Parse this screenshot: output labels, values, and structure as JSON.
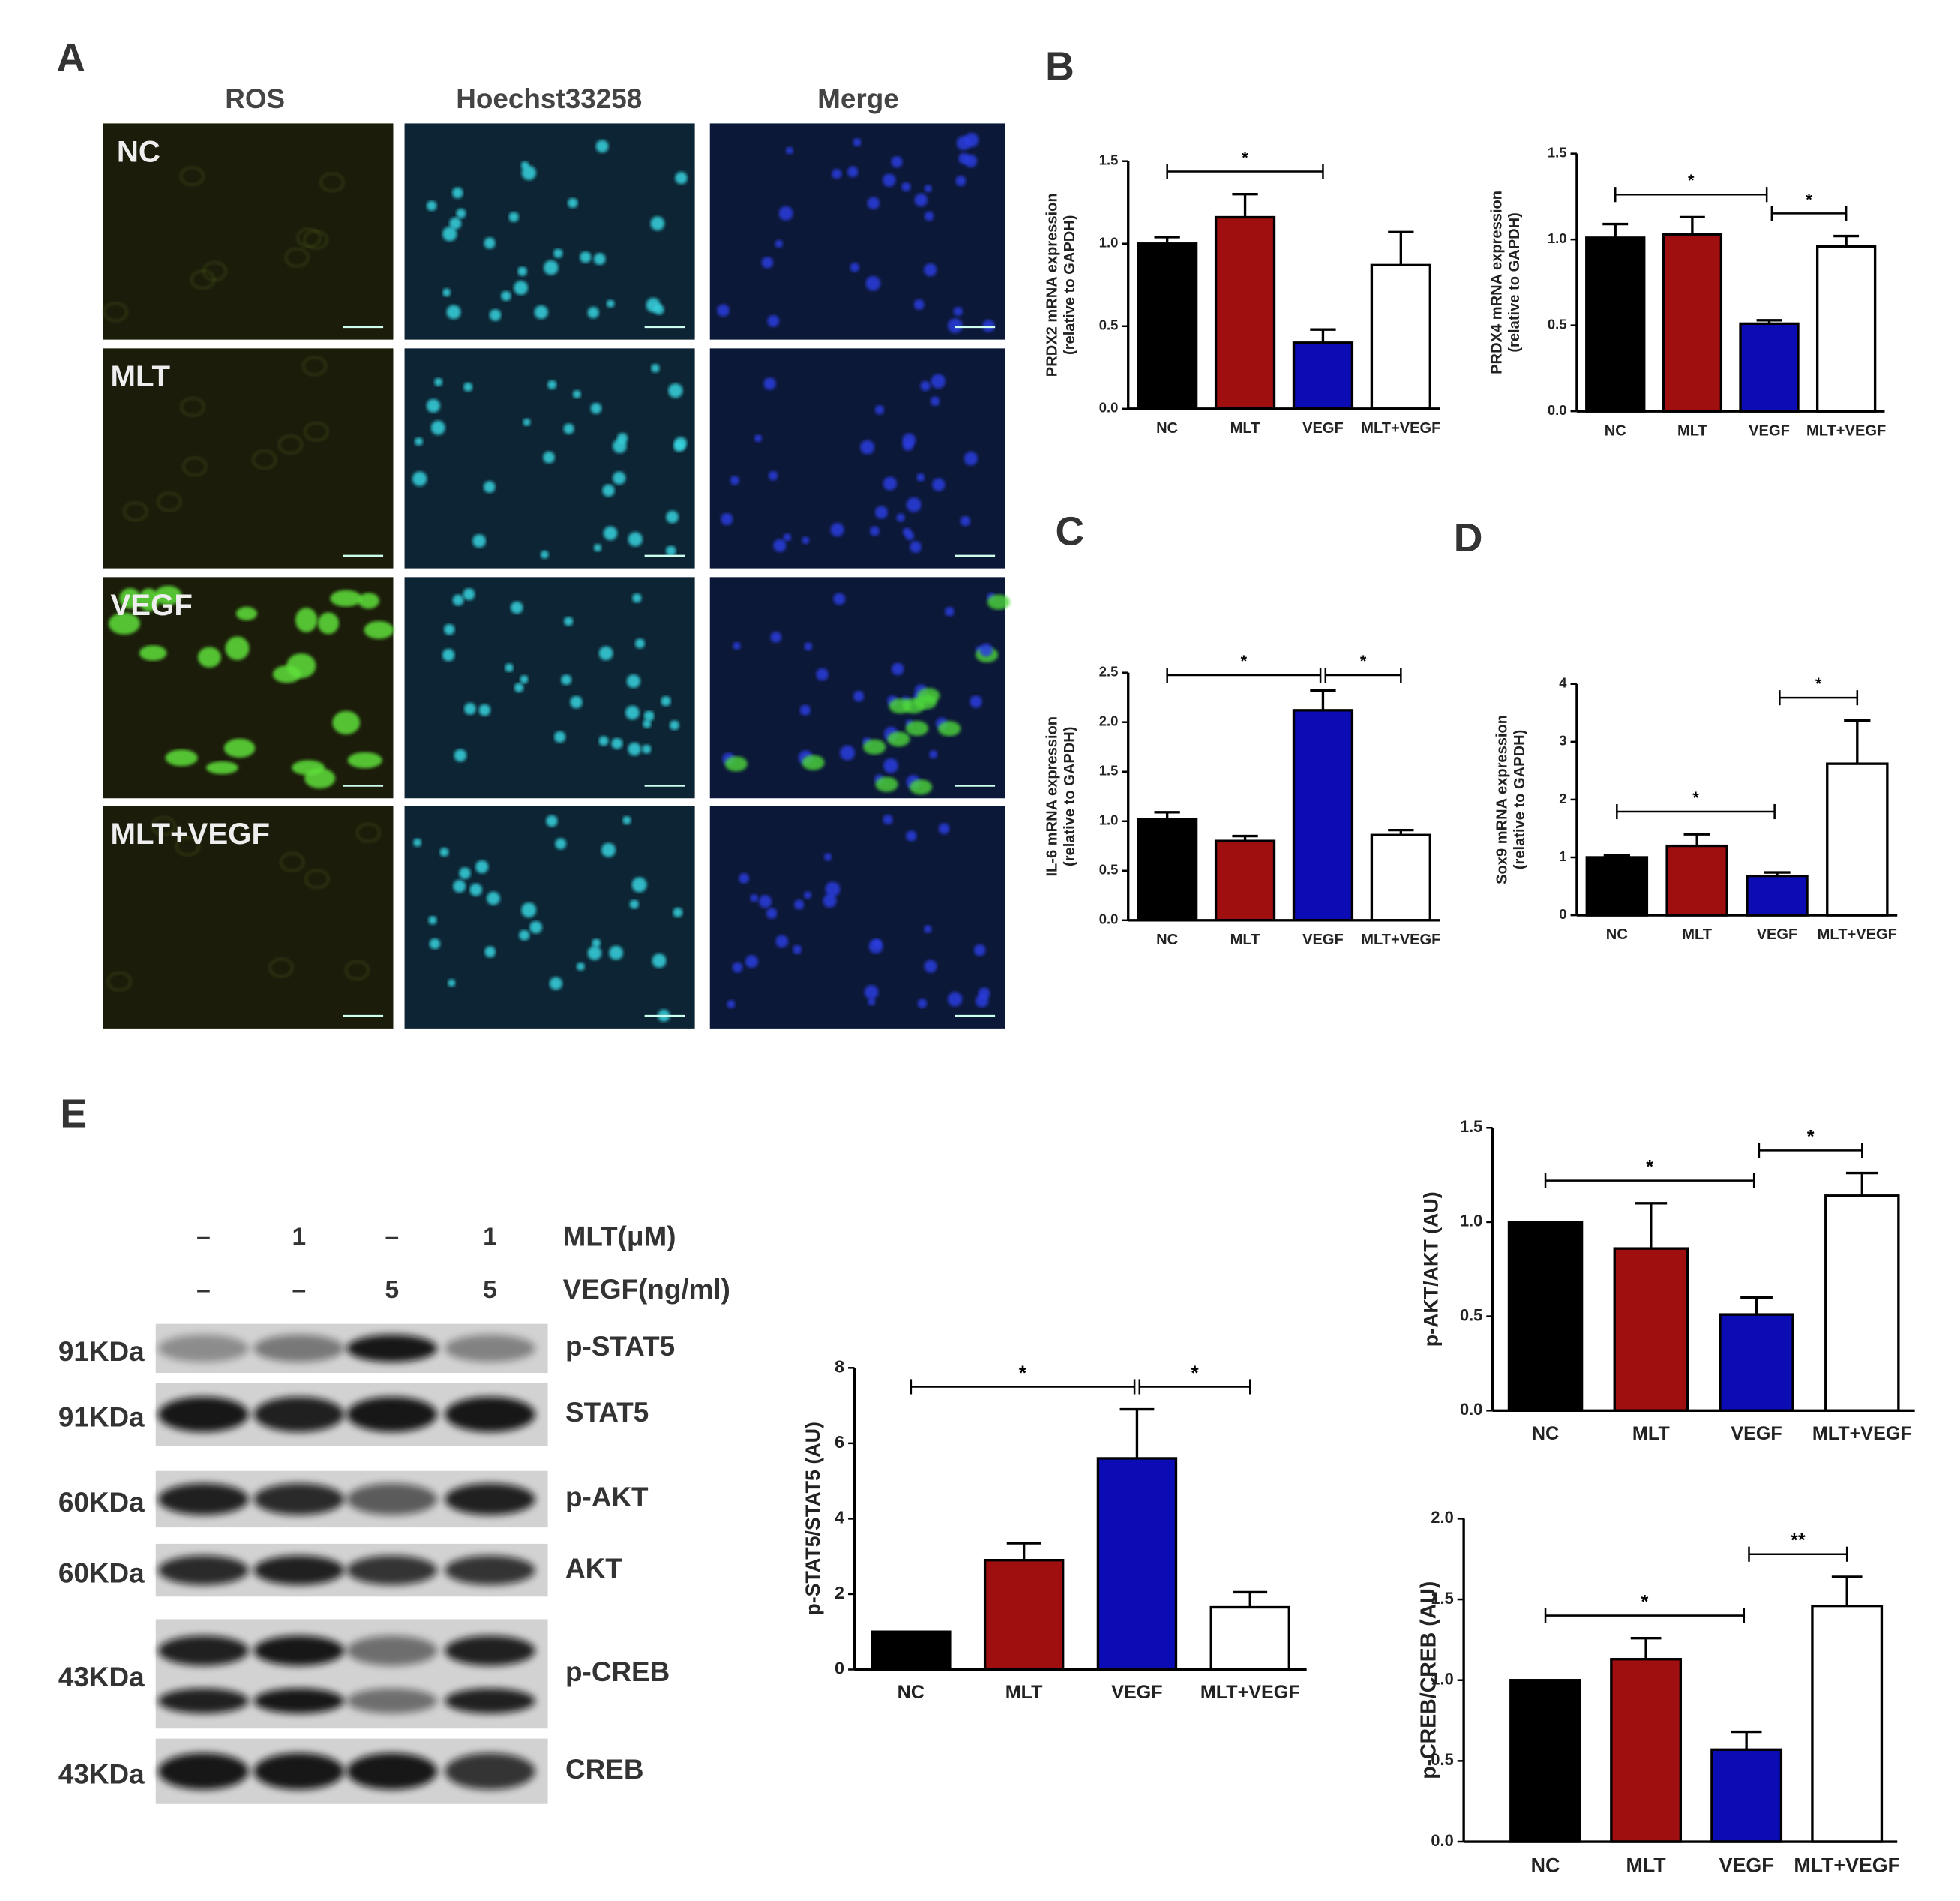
{
  "panel_labels": [
    "A",
    "B",
    "C",
    "D",
    "E"
  ],
  "panel_a": {
    "columns": [
      "ROS",
      "Hoechst33258",
      "Merge"
    ],
    "rows": [
      "NC",
      "MLT",
      "VEGF",
      "MLT+VEGF"
    ]
  },
  "blot": {
    "treatments": [
      {
        "label": "MLT(μM)",
        "lanes": [
          "–",
          "1",
          "–",
          "1"
        ]
      },
      {
        "label": "VEGF(ng/ml)",
        "lanes": [
          "–",
          "–",
          "5",
          "5"
        ]
      }
    ],
    "bands": [
      {
        "size": "91KDa",
        "protein": "p-STAT5"
      },
      {
        "size": "91KDa",
        "protein": "STAT5"
      },
      {
        "size": "60KDa",
        "protein": "p-AKT"
      },
      {
        "size": "60KDa",
        "protein": "AKT"
      },
      {
        "size": "43KDa",
        "protein": "p-CREB"
      },
      {
        "size": "43KDa",
        "protein": "CREB"
      }
    ]
  },
  "chart_data": [
    {
      "type": "bar",
      "y_label": [
        "PRDX2 mRNA expression",
        "(relative to GAPDH)"
      ],
      "categories": [
        "NC",
        "MLT",
        "VEGF",
        "MLT+VEGF"
      ],
      "values": [
        1.0,
        1.16,
        0.4,
        0.87
      ],
      "errors": [
        0.04,
        0.14,
        0.08,
        0.2
      ],
      "colors": [
        "#000000",
        "#a00f0f",
        "#0c0cb4",
        "#ffffff"
      ],
      "ylim": [
        0,
        1.5
      ],
      "yticks": [
        {
          "value": 0,
          "label": "0.0"
        },
        0.5,
        {
          "value": 1,
          "label": "1.0"
        },
        1.5
      ],
      "significance": [
        {
          "from": "NC",
          "to": "VEGF",
          "label": "*"
        }
      ]
    },
    {
      "type": "bar",
      "y_label": [
        "PRDX4 mRNA expression",
        "(relative to GAPDH)"
      ],
      "categories": [
        "NC",
        "MLT",
        "VEGF",
        "MLT+VEGF"
      ],
      "values": [
        1.01,
        1.03,
        0.51,
        0.96
      ],
      "errors": [
        0.08,
        0.1,
        0.02,
        0.06
      ],
      "colors": [
        "#000000",
        "#a00f0f",
        "#0c0cb4",
        "#ffffff"
      ],
      "ylim": [
        0,
        1.5
      ],
      "yticks": [
        {
          "value": 0,
          "label": "0.0"
        },
        0.5,
        {
          "value": 1,
          "label": "1.0"
        },
        1.5
      ],
      "significance": [
        {
          "from": "NC",
          "to": "VEGF",
          "label": "*"
        },
        {
          "from": "VEGF",
          "to": "MLT+VEGF",
          "label": "*"
        }
      ]
    },
    {
      "type": "bar",
      "y_label": [
        "IL-6 mRNA expression",
        "(relative to GAPDH)"
      ],
      "categories": [
        "NC",
        "MLT",
        "VEGF",
        "MLT+VEGF"
      ],
      "values": [
        1.02,
        0.8,
        2.12,
        0.86
      ],
      "errors": [
        0.07,
        0.05,
        0.2,
        0.05
      ],
      "colors": [
        "#000000",
        "#a00f0f",
        "#0c0cb4",
        "#ffffff"
      ],
      "ylim": [
        0,
        2.5
      ],
      "yticks": [
        {
          "value": 0,
          "label": "0.0"
        },
        0.5,
        {
          "value": 1,
          "label": "1.0"
        },
        1.5,
        {
          "value": 2,
          "label": "2.0"
        },
        2.5
      ],
      "significance": [
        {
          "from": "NC",
          "to": "VEGF",
          "label": "*"
        },
        {
          "from": "VEGF",
          "to": "MLT+VEGF",
          "label": "*"
        }
      ]
    },
    {
      "type": "bar",
      "y_label": [
        "Sox9 mRNA expression",
        "(relative to GAPDH)"
      ],
      "categories": [
        "NC",
        "MLT",
        "VEGF",
        "MLT+VEGF"
      ],
      "values": [
        1.0,
        1.2,
        0.68,
        2.62
      ],
      "errors": [
        0.03,
        0.2,
        0.06,
        0.75
      ],
      "colors": [
        "#000000",
        "#a00f0f",
        "#0c0cb4",
        "#ffffff"
      ],
      "ylim": [
        0,
        4
      ],
      "yticks": [
        0,
        1,
        2,
        3,
        4
      ],
      "significance": [
        {
          "from": "NC",
          "to": "VEGF",
          "label": "*"
        },
        {
          "from": "VEGF",
          "to": "MLT+VEGF",
          "label": "*"
        }
      ]
    },
    {
      "type": "bar",
      "y_label": [
        "p-STAT5/STAT5 (AU)"
      ],
      "categories": [
        "NC",
        "MLT",
        "VEGF",
        "MLT+VEGF"
      ],
      "values": [
        1.0,
        2.9,
        5.6,
        1.65
      ],
      "errors": [
        0,
        0.45,
        1.3,
        0.4
      ],
      "colors": [
        "#000000",
        "#a00f0f",
        "#0c0cb4",
        "#ffffff"
      ],
      "ylim": [
        0,
        8
      ],
      "yticks": [
        0,
        2,
        4,
        6,
        8
      ],
      "significance": [
        {
          "from": "NC",
          "to": "VEGF",
          "label": "*"
        },
        {
          "from": "VEGF",
          "to": "MLT+VEGF",
          "label": "*"
        }
      ]
    },
    {
      "type": "bar",
      "y_label": [
        "p-AKT/AKT (AU)"
      ],
      "categories": [
        "NC",
        "MLT",
        "VEGF",
        "MLT+VEGF"
      ],
      "values": [
        1.0,
        0.86,
        0.51,
        1.14
      ],
      "errors": [
        0,
        0.24,
        0.09,
        0.12
      ],
      "colors": [
        "#000000",
        "#a00f0f",
        "#0c0cb4",
        "#ffffff"
      ],
      "ylim": [
        0,
        1.5
      ],
      "yticks": [
        {
          "value": 0,
          "label": "0.0"
        },
        0.5,
        {
          "value": 1,
          "label": "1.0"
        },
        1.5
      ],
      "significance": [
        {
          "from": "NC",
          "to": "VEGF",
          "label": "*"
        },
        {
          "from": "VEGF",
          "to": "MLT+VEGF",
          "label": "*"
        }
      ]
    },
    {
      "type": "bar",
      "y_label": [
        "p-CREB/CREB (AU)"
      ],
      "categories": [
        "NC",
        "MLT",
        "VEGF",
        "MLT+VEGF"
      ],
      "values": [
        1.0,
        1.13,
        0.57,
        1.46
      ],
      "errors": [
        0,
        0.13,
        0.11,
        0.18
      ],
      "colors": [
        "#000000",
        "#a00f0f",
        "#0c0cb4",
        "#ffffff"
      ],
      "ylim": [
        0,
        2
      ],
      "yticks": [
        {
          "value": 0,
          "label": "0.0"
        },
        0.5,
        {
          "value": 1,
          "label": "1.0"
        },
        1.5,
        {
          "value": 2,
          "label": "2.0"
        }
      ],
      "significance": [
        {
          "from": "NC",
          "to": "VEGF",
          "label": "*"
        },
        {
          "from": "VEGF",
          "to": "MLT+VEGF",
          "label": "**"
        }
      ]
    }
  ]
}
